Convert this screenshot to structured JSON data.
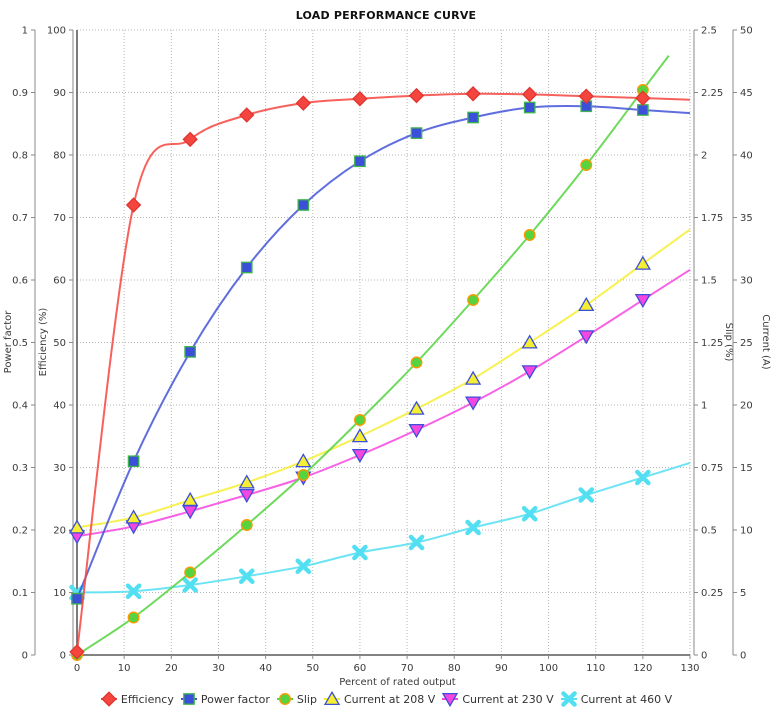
{
  "title": "LOAD PERFORMANCE CURVE",
  "chart_data": {
    "type": "line",
    "title": "LOAD PERFORMANCE CURVE",
    "xlabel": "Percent of rated output",
    "grid": true,
    "legend_position": "bottom",
    "x_axis": {
      "label": "Percent of rated output",
      "min": 0,
      "max": 130,
      "tick_step": 10
    },
    "y_axes": [
      {
        "id": "power_factor",
        "label": "Power factor",
        "min": 0,
        "max": 1,
        "tick_step": 0.1,
        "side": "left-outer"
      },
      {
        "id": "efficiency",
        "label": "Efficiency (%)",
        "min": 0,
        "max": 100,
        "tick_step": 10,
        "side": "left-inner"
      },
      {
        "id": "slip",
        "label": "Slip (%)",
        "min": 0,
        "max": 2.5,
        "tick_step": 0.25,
        "side": "right-inner"
      },
      {
        "id": "current",
        "label": "Current (A)",
        "min": 0,
        "max": 50,
        "tick_step": 5,
        "side": "right-outer"
      }
    ],
    "x": [
      0,
      12,
      24,
      36,
      48,
      60,
      72,
      84,
      96,
      108,
      120
    ],
    "series": [
      {
        "name": "Efficiency",
        "axis": "efficiency",
        "marker": "diamond",
        "color": "#f4453f",
        "marker_fill": "#f4453f",
        "marker_stroke": "#e03530",
        "values": [
          0.5,
          72,
          82.5,
          86.4,
          88.3,
          89.0,
          89.5,
          89.8,
          89.7,
          89.4,
          89.1
        ]
      },
      {
        "name": "Power factor",
        "axis": "power_factor",
        "marker": "square",
        "color": "#4353d9",
        "marker_fill": "#3b4fd8",
        "marker_stroke": "#3cb44b",
        "values": [
          0.09,
          0.31,
          0.485,
          0.62,
          0.72,
          0.79,
          0.835,
          0.86,
          0.876,
          0.878,
          0.872
        ]
      },
      {
        "name": "Slip",
        "axis": "slip",
        "marker": "circle",
        "color": "#55d43f",
        "marker_fill": "#55d43f",
        "marker_stroke": "#ff9800",
        "values": [
          0,
          0.15,
          0.33,
          0.52,
          0.72,
          0.94,
          1.17,
          1.42,
          1.68,
          1.96,
          2.26
        ]
      },
      {
        "name": "Current at 208 V",
        "axis": "current",
        "marker": "triangle-up",
        "color": "#f6ee33",
        "marker_fill": "#f6ee33",
        "marker_stroke": "#3b4fd8",
        "values": [
          10.2,
          11.0,
          12.4,
          13.8,
          15.5,
          17.5,
          19.7,
          22.1,
          25.0,
          28.0,
          31.3
        ]
      },
      {
        "name": "Current at 230 V",
        "axis": "current",
        "marker": "triangle-down",
        "color": "#f646e0",
        "marker_fill": "#f646e0",
        "marker_stroke": "#3b4fd8",
        "values": [
          9.5,
          10.3,
          11.5,
          12.8,
          14.2,
          16.0,
          18.0,
          20.2,
          22.7,
          25.5,
          28.4
        ]
      },
      {
        "name": "Current at 460 V",
        "axis": "current",
        "marker": "x",
        "color": "#52dff2",
        "marker_fill": "#52dff2",
        "marker_stroke": "#52dff2",
        "values": [
          5.0,
          5.1,
          5.6,
          6.3,
          7.1,
          8.2,
          9.0,
          10.2,
          11.3,
          12.8,
          14.2
        ]
      }
    ]
  }
}
